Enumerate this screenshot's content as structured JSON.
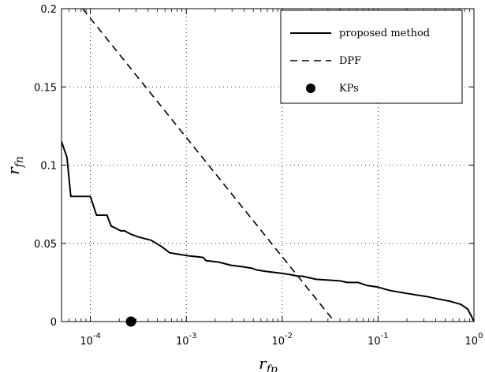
{
  "chart_data": {
    "type": "line",
    "title": "",
    "xlabel": {
      "base": "r",
      "sub": "fp"
    },
    "ylabel": {
      "base": "r",
      "sub": "fn"
    },
    "xscale": "log",
    "xlim": [
      5e-05,
      1
    ],
    "ylim": [
      0,
      0.2
    ],
    "grid": true,
    "legend_position": "top-right",
    "xticks": [
      {
        "value": 0.0001,
        "base": "10",
        "exp": "-4"
      },
      {
        "value": 0.001,
        "base": "10",
        "exp": "-3"
      },
      {
        "value": 0.01,
        "base": "10",
        "exp": "-2"
      },
      {
        "value": 0.1,
        "base": "10",
        "exp": "-1"
      },
      {
        "value": 1,
        "base": "10",
        "exp": "0"
      }
    ],
    "yticks": [
      {
        "value": 0,
        "label": "0"
      },
      {
        "value": 0.05,
        "label": "0.05"
      },
      {
        "value": 0.1,
        "label": "0.1"
      },
      {
        "value": 0.15,
        "label": "0.15"
      },
      {
        "value": 0.2,
        "label": "0.2"
      }
    ],
    "series": [
      {
        "name": "proposed method",
        "style": "solid",
        "x": [
          5e-05,
          5.7e-05,
          6.25e-05,
          0.0001,
          0.000116,
          0.000149,
          0.000153,
          0.000165,
          0.00018,
          0.000207,
          0.000227,
          0.00026,
          0.00032,
          0.00043,
          0.00055,
          0.00067,
          0.00083,
          0.00106,
          0.0015,
          0.0016,
          0.0022,
          0.0029,
          0.0039,
          0.0049,
          0.0054,
          0.0069,
          0.0095,
          0.0121,
          0.0146,
          0.0161,
          0.0226,
          0.04,
          0.048,
          0.062,
          0.077,
          0.1,
          0.13,
          0.16,
          0.2,
          0.32,
          0.46,
          0.56,
          0.73,
          0.86,
          0.93,
          1
        ],
        "y": [
          0.115,
          0.105,
          0.08,
          0.08,
          0.068,
          0.068,
          0.066,
          0.061,
          0.06,
          0.058,
          0.058,
          0.056,
          0.054,
          0.052,
          0.048,
          0.044,
          0.043,
          0.042,
          0.041,
          0.039,
          0.038,
          0.036,
          0.035,
          0.034,
          0.033,
          0.032,
          0.031,
          0.03,
          0.029,
          0.029,
          0.027,
          0.026,
          0.025,
          0.025,
          0.023,
          0.022,
          0.02,
          0.019,
          0.018,
          0.016,
          0.014,
          0.013,
          0.011,
          0.008,
          0.004,
          0
        ]
      },
      {
        "name": "DPF",
        "style": "dashed",
        "x": [
          8.3e-05,
          0.035
        ],
        "y": [
          0.2,
          0
        ]
      },
      {
        "name": "KPs",
        "style": "marker",
        "x": [
          0.000265
        ],
        "y": [
          0
        ]
      }
    ]
  }
}
